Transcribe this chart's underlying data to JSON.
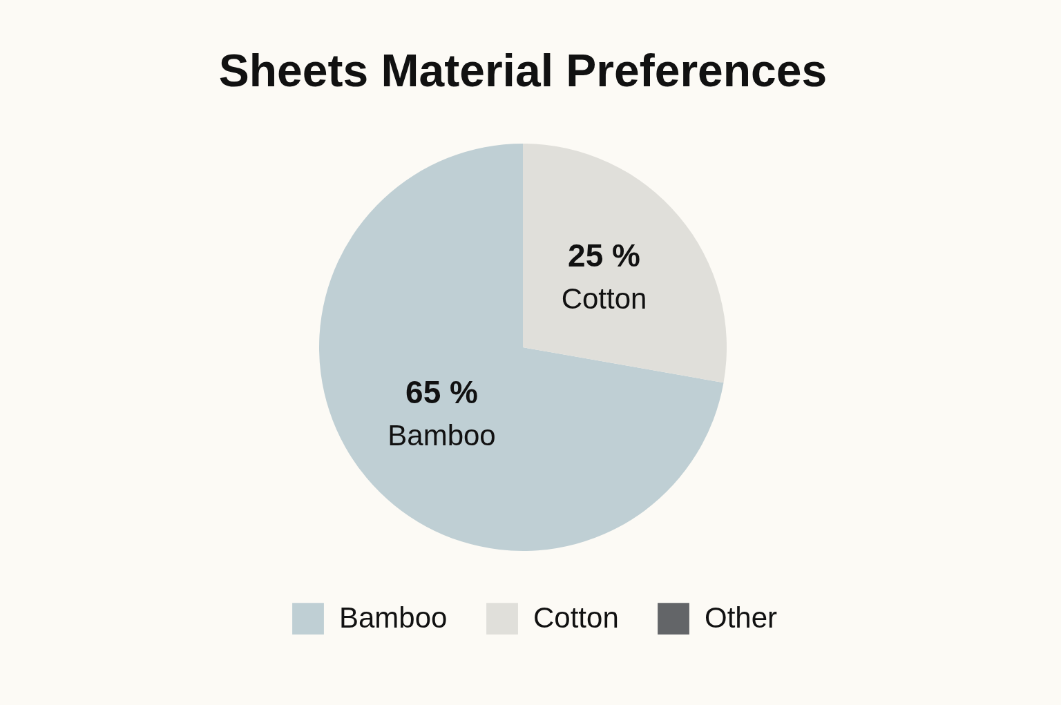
{
  "chart_data": {
    "type": "pie",
    "title": "Sheets Material Preferences",
    "categories": [
      "Bamboo",
      "Cotton",
      "Other"
    ],
    "values": [
      65,
      25,
      null
    ],
    "colors": [
      "#bfcfd4",
      "#e0dfda",
      "#636568"
    ],
    "value_labels": [
      "65 %",
      "25 %",
      null
    ],
    "legend": "bottom"
  }
}
